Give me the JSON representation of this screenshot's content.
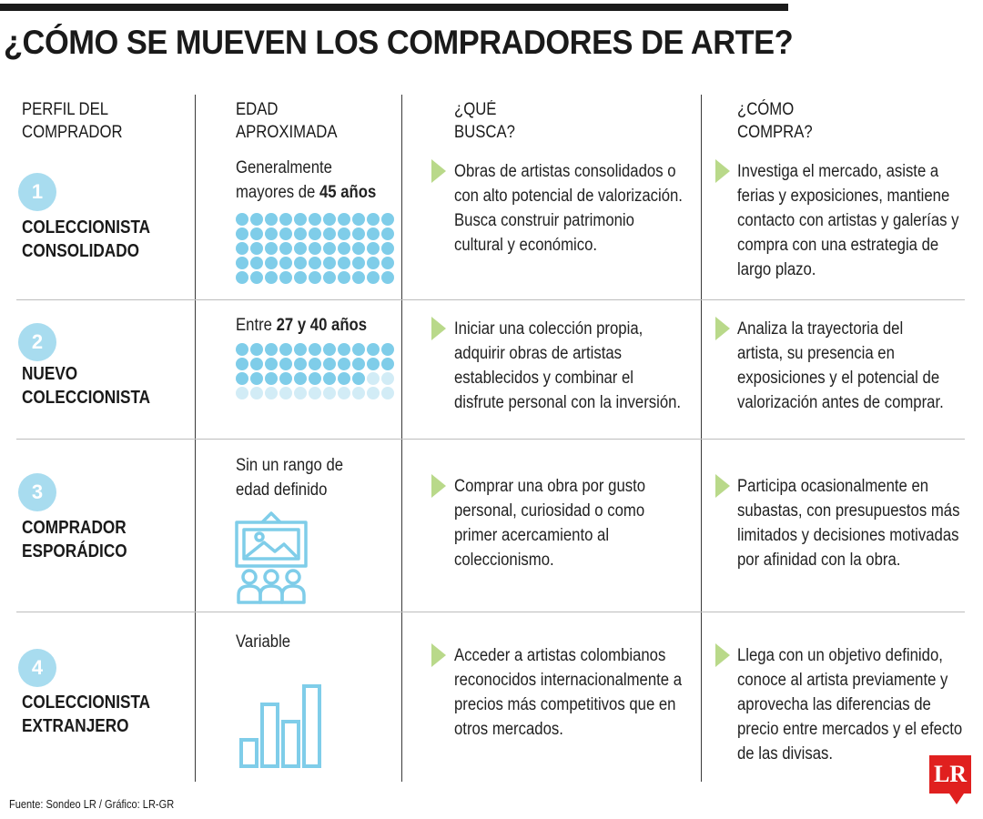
{
  "title": "¿CÓMO SE MUEVEN LOS COMPRADORES DE ARTE?",
  "headers": {
    "profile": [
      "PERFIL DEL",
      "COMPRADOR"
    ],
    "age": [
      "EDAD",
      "APROXIMADA"
    ],
    "seeks": [
      "¿QUÉ",
      "BUSCA?"
    ],
    "buys": [
      "¿CÓMO",
      "COMPRA?"
    ]
  },
  "rows": [
    {
      "number": "1",
      "profile": [
        "COLECCIONISTA",
        "CONSOLIDADO"
      ],
      "age": {
        "line1": "Generalmente",
        "line2_pre": "mayores de ",
        "line2_bold": "45 años"
      },
      "seeks": [
        "Obras de artistas consolidados o",
        "con alto potencial de valorización.",
        "Busca construir patrimonio",
        "cultural y económico."
      ],
      "buys": [
        "Investiga el mercado, asiste a",
        "ferias y exposiciones, mantiene",
        "contacto con artistas y galerías y",
        "compra con una estrategia de",
        "largo plazo."
      ]
    },
    {
      "number": "2",
      "profile": [
        "NUEVO",
        "COLECCIONISTA"
      ],
      "age": {
        "pre": "Entre ",
        "bold": "27 y 40 años"
      },
      "seeks": [
        "Iniciar una colección propia,",
        "adquirir obras de artistas",
        "establecidos y combinar el",
        "disfrute personal con la inversión."
      ],
      "buys": [
        "Analiza la trayectoria del",
        "artista, su presencia en",
        "exposiciones y el potencial de",
        "valorización antes de comprar."
      ]
    },
    {
      "number": "3",
      "profile": [
        "COMPRADOR",
        "ESPORÁDICO"
      ],
      "age": {
        "line1": "Sin un rango de",
        "line2": "edad definido"
      },
      "seeks": [
        "Comprar una obra por gusto",
        "personal, curiosidad o como",
        "primer acercamiento al",
        "coleccionismo."
      ],
      "buys": [
        "Participa ocasionalmente en",
        "subastas, con presupuestos más",
        "limitados y decisiones motivadas",
        "por afinidad con la obra."
      ]
    },
    {
      "number": "4",
      "profile": [
        "COLECCIONISTA",
        "EXTRANJERO"
      ],
      "age": {
        "line1": "Variable"
      },
      "seeks": [
        "Acceder a artistas colombianos",
        "reconocidos internacionalmente a",
        "precios más competitivos que en",
        "otros mercados."
      ],
      "buys": [
        "Llega con un objetivo definido,",
        "conoce al artista previamente y",
        "aprovecha las diferencias de",
        "precio entre mercados y el efecto",
        "de las divisas."
      ]
    }
  ],
  "dot_grids": [
    {
      "filled": 55,
      "total": 55,
      "columns": 11
    },
    {
      "filled": 31,
      "total": 44,
      "columns": 11
    }
  ],
  "icons": {
    "row3": "art-gallery-audience-icon",
    "row4": "bar-chart-icon",
    "arrows": "triangle-bullet-icon"
  },
  "colors": {
    "accent_blue": "#7fcde9",
    "circle_blue": "#a8dcef",
    "arrow_green": "#b9d98a",
    "brand_red": "#e0201f"
  },
  "source": "Fuente: Sondeo LR / Gráfico: LR-GR",
  "logo": "LR"
}
